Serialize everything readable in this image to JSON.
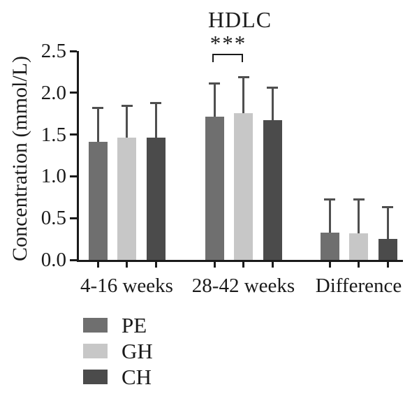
{
  "chart_data": {
    "type": "bar",
    "title": "HDLC",
    "ylabel": "Concentration (mmol/L)",
    "xlabel": "",
    "categories": [
      "4-16 weeks",
      "28-42 weeks",
      "Difference"
    ],
    "series": [
      {
        "name": "PE",
        "color": "#6f6f6f",
        "values": [
          1.41,
          1.71,
          0.33
        ],
        "error_sd_upper": [
          0.42,
          0.41,
          0.41
        ]
      },
      {
        "name": "GH",
        "color": "#c7c7c7",
        "values": [
          1.46,
          1.76,
          0.32
        ],
        "error_sd_upper": [
          0.4,
          0.44,
          0.42
        ]
      },
      {
        "name": "CH",
        "color": "#4b4b4b",
        "values": [
          1.46,
          1.67,
          0.25
        ],
        "error_sd_upper": [
          0.43,
          0.4,
          0.39
        ]
      }
    ],
    "ylim": [
      0,
      2.5
    ],
    "yticks": [
      0,
      0.5,
      1.0,
      1.5,
      2.0,
      2.5
    ],
    "ytick_labels": [
      "0.0",
      "0.5",
      "1.0",
      "1.5",
      "2.0",
      "2.5"
    ],
    "grid": false,
    "legend_position": "below-left",
    "significance": {
      "label": "***",
      "category": "28-42 weeks",
      "between_series": [
        "PE",
        "GH"
      ]
    },
    "error_bar_color": "#4f4f4f",
    "axis_color": "#1a1a1a",
    "background_color": "#ffffff"
  }
}
